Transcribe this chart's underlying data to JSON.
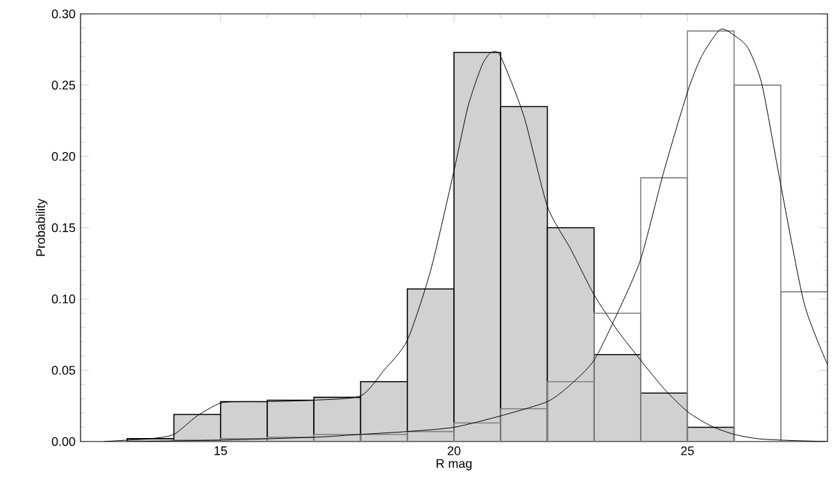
{
  "chart_data": {
    "type": "histogram",
    "xlabel": "R mag",
    "ylabel": "Probability",
    "xlim": [
      12,
      28
    ],
    "ylim": [
      0,
      0.3
    ],
    "xticks": [
      15,
      20,
      25
    ],
    "yticks": [
      {
        "value": 0,
        "label": "0.00"
      },
      {
        "value": 0.05,
        "label": "0.05"
      },
      {
        "value": 0.1,
        "label": "0.10"
      },
      {
        "value": 0.15,
        "label": "0.15"
      },
      {
        "value": 0.2,
        "label": "0.20"
      },
      {
        "value": 0.25,
        "label": "0.25"
      },
      {
        "value": 0.3,
        "label": "0.30"
      }
    ],
    "series": [
      {
        "color": "#000000",
        "bins": [
          13,
          14,
          15,
          16,
          17,
          18,
          19,
          20,
          21,
          22,
          23,
          24,
          25,
          26,
          27,
          28
        ],
        "values": [
          0.002,
          0.019,
          0.028,
          0.029,
          0.031,
          0.042,
          0.107,
          0.273,
          0.235,
          0.15,
          0.061,
          0.034,
          0.01,
          null,
          null
        ]
      },
      {
        "color": "#808080",
        "bins": [
          13,
          14,
          15,
          16,
          17,
          18,
          19,
          20,
          21,
          22,
          23,
          24,
          25,
          26,
          27,
          28
        ],
        "values": [
          0.0,
          0.001,
          0.002,
          0.003,
          0.005,
          0.005,
          0.007,
          0.013,
          0.023,
          0.042,
          0.09,
          0.185,
          0.288,
          0.25,
          0.105
        ]
      },
      {
        "type": "line",
        "color": "#000000",
        "x": [
          12.5,
          13,
          13.5,
          14,
          14.5,
          15,
          15.5,
          16,
          17,
          18,
          18.5,
          19,
          19.5,
          20,
          20.3,
          20.6,
          20.8,
          21,
          21.5,
          22,
          22.5,
          23,
          23.5,
          24,
          24.5,
          25,
          25.5,
          26,
          26.5,
          27,
          28
        ],
        "values": [
          0.0,
          0.001,
          0.002,
          0.005,
          0.018,
          0.027,
          0.028,
          0.028,
          0.029,
          0.032,
          0.05,
          0.071,
          0.12,
          0.19,
          0.235,
          0.264,
          0.273,
          0.27,
          0.228,
          0.165,
          0.135,
          0.103,
          0.078,
          0.057,
          0.037,
          0.021,
          0.011,
          0.005,
          0.002,
          0.001,
          0.0
        ]
      },
      {
        "type": "line",
        "color": "#000000",
        "x": [
          13,
          15,
          17,
          18,
          19,
          20,
          21,
          22,
          22.5,
          23,
          23.5,
          24,
          24.5,
          25,
          25.3,
          25.7,
          26,
          26.3,
          26.6,
          27,
          27.5,
          28
        ],
        "values": [
          0.0,
          0.001,
          0.003,
          0.005,
          0.007,
          0.01,
          0.018,
          0.028,
          0.04,
          0.057,
          0.09,
          0.128,
          0.19,
          0.245,
          0.27,
          0.289,
          0.285,
          0.276,
          0.25,
          0.18,
          0.097,
          0.054
        ]
      }
    ]
  }
}
